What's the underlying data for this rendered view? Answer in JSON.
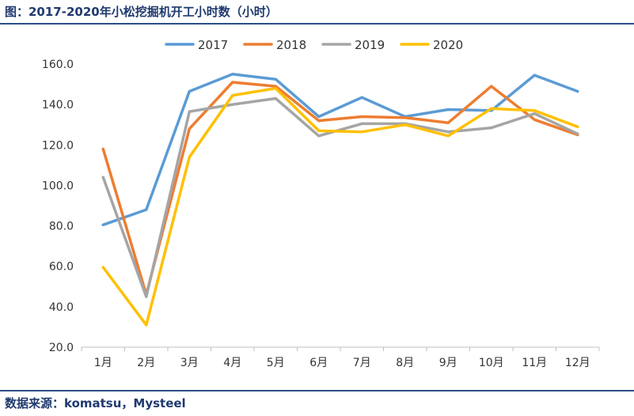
{
  "figure": {
    "title": "图：2017-2020年小松挖掘机开工小时数（小时）",
    "source": "数据来源：komatsu，Mysteel"
  },
  "chart_data": {
    "type": "line",
    "title": "2017-2020年小松挖掘机开工小时数（小时）",
    "xlabel": "",
    "ylabel": "",
    "categories": [
      "1月",
      "2月",
      "3月",
      "4月",
      "5月",
      "6月",
      "7月",
      "8月",
      "9月",
      "10月",
      "11月",
      "12月"
    ],
    "ylim": [
      20,
      160
    ],
    "yticks": [
      "20.0",
      "40.0",
      "60.0",
      "80.0",
      "100.0",
      "120.0",
      "140.0",
      "160.0"
    ],
    "grid": false,
    "legend_position": "top-center",
    "series": [
      {
        "name": "2017",
        "color": "#5b9bd5",
        "values": [
          80.5,
          88,
          146.5,
          155,
          152.5,
          134,
          143.5,
          134,
          137.5,
          137,
          154.5,
          146.5
        ]
      },
      {
        "name": "2018",
        "color": "#ed7d31",
        "values": [
          118,
          46,
          128,
          151,
          149,
          132,
          134,
          133.5,
          131,
          149,
          132.5,
          125
        ]
      },
      {
        "name": "2019",
        "color": "#a5a5a5",
        "values": [
          104,
          45,
          136.5,
          140,
          143,
          124.5,
          130.5,
          130.5,
          126.5,
          128.5,
          135.5,
          125.5
        ]
      },
      {
        "name": "2020",
        "color": "#ffc000",
        "values": [
          59.5,
          31,
          114,
          144.5,
          148,
          127,
          126.5,
          130,
          124.5,
          138,
          137,
          129
        ]
      }
    ]
  }
}
